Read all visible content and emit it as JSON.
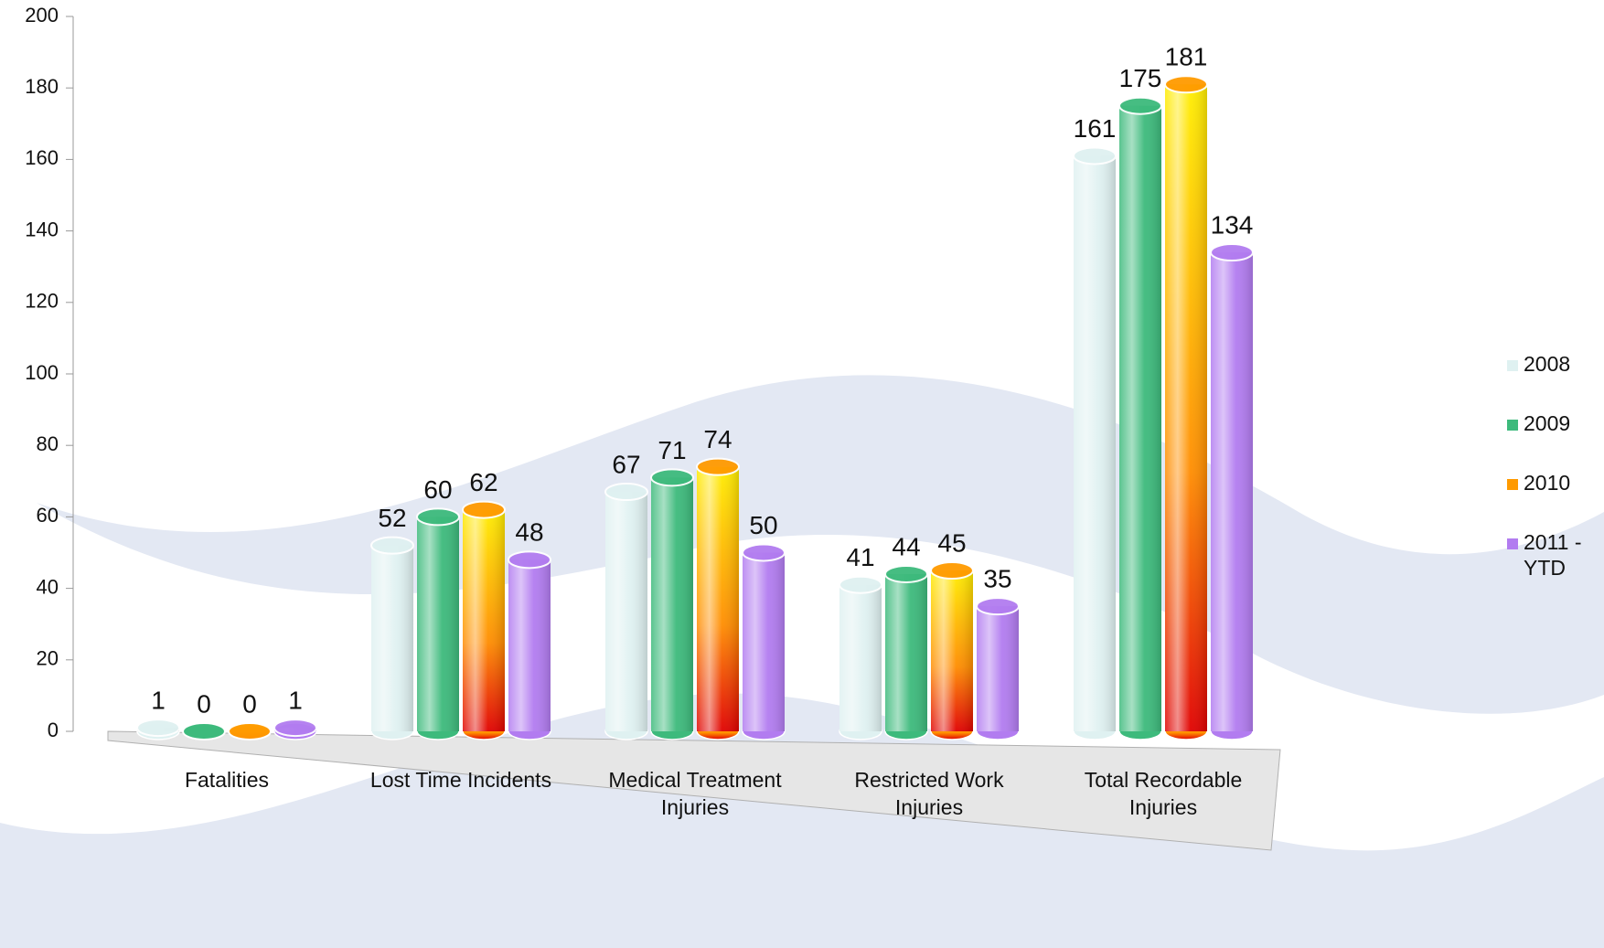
{
  "chart_data": {
    "type": "bar",
    "categories": [
      "Fatalities",
      "Lost Time Incidents",
      "Medical Treatment Injuries",
      "Restricted Work Injuries",
      "Total Recordable Injuries"
    ],
    "series": [
      {
        "name": "2008",
        "color": "#dff1f1",
        "values": [
          1,
          52,
          67,
          41,
          161
        ]
      },
      {
        "name": "2009",
        "color": "#3dba7c",
        "values": [
          0,
          60,
          71,
          44,
          175
        ]
      },
      {
        "name": "2010",
        "color": "#ff9a00",
        "values": [
          0,
          62,
          74,
          45,
          181
        ]
      },
      {
        "name": "2011 - YTD",
        "color": "#b27cf0",
        "values": [
          1,
          48,
          50,
          35,
          134
        ]
      }
    ],
    "ylim": [
      0,
      200
    ],
    "yticks": [
      0,
      20,
      40,
      60,
      80,
      100,
      120,
      140,
      160,
      180,
      200
    ],
    "grid": false,
    "legend": "right"
  }
}
